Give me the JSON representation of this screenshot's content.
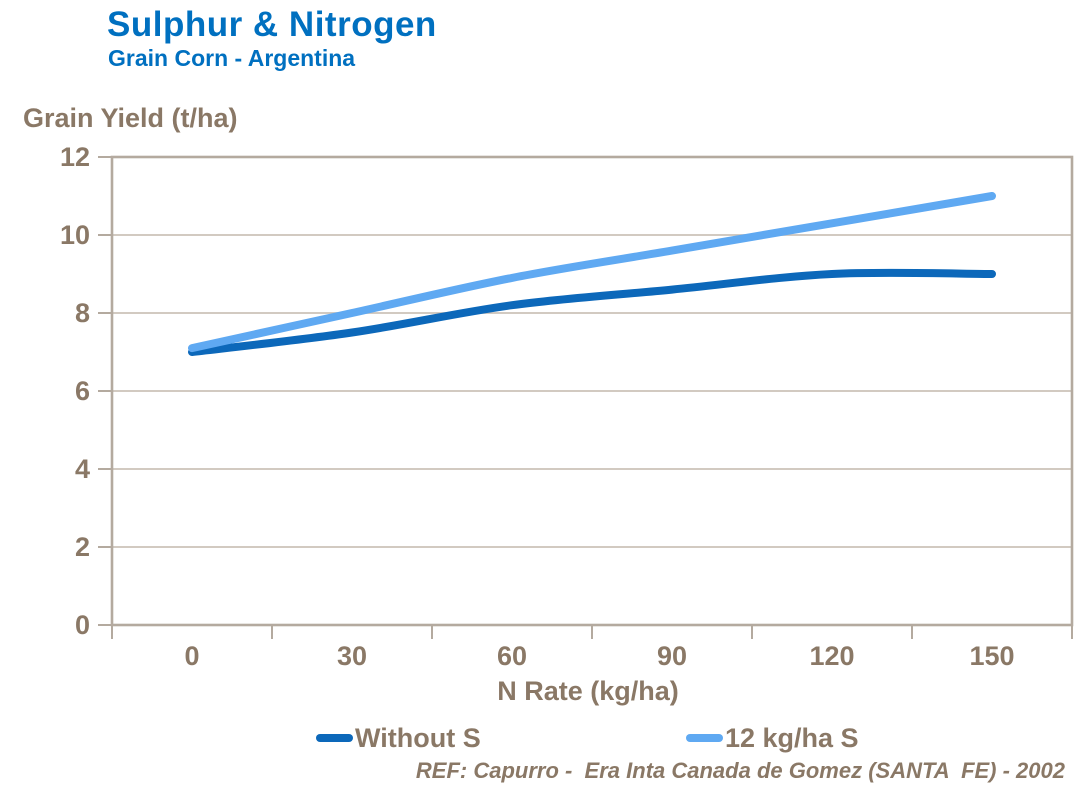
{
  "header": {
    "title": "Sulphur & Nitrogen",
    "subtitle": "Grain Corn - Argentina"
  },
  "colors": {
    "title": "#0070C0",
    "text": "#8A7866",
    "plot_border": "#B4AA9F",
    "gridline": "#CBC2B8",
    "series_dark_blue": "#0C68BA",
    "series_light_blue": "#5FA9F2"
  },
  "chart_data": {
    "type": "line",
    "title": "Sulphur & Nitrogen",
    "subtitle": "Grain Corn - Argentina",
    "xlabel": "N Rate (kg/ha)",
    "ylabel": "Grain Yield (t/ha)",
    "x": [
      0,
      30,
      60,
      90,
      120,
      150
    ],
    "xticklabels": [
      "0",
      "30",
      "60",
      "90",
      "120",
      "150"
    ],
    "ylim": [
      0,
      12
    ],
    "yticks": [
      0,
      2,
      4,
      6,
      8,
      10,
      12
    ],
    "yticklabels_top_to_bottom": [
      "12",
      "10",
      "8",
      "6",
      "4",
      "2",
      "0"
    ],
    "grid": "horizontal",
    "line_style": "smooth, no markers",
    "legend_position": "bottom",
    "series": [
      {
        "name": "Without S",
        "color": "#0C68BA",
        "values": [
          7.0,
          7.5,
          8.2,
          8.6,
          9.0,
          9.0
        ]
      },
      {
        "name": "12 kg/ha S",
        "color": "#5FA9F2",
        "values": [
          7.1,
          8.0,
          8.9,
          9.6,
          10.3,
          11.0
        ]
      }
    ]
  },
  "footer": {
    "reference": "REF: Capurro -  Era Inta Canada de Gomez (SANTA  FE) - 2002"
  }
}
